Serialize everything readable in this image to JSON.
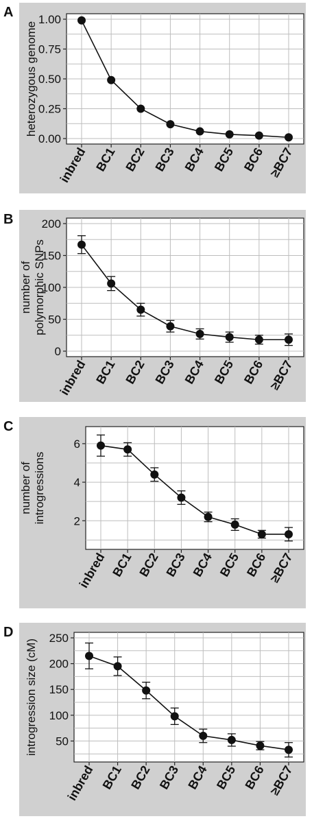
{
  "chart_data": [
    {
      "type": "line",
      "panel_label": "A",
      "ylabel": "heterozygous genome",
      "categories": [
        "inbred",
        "BC1",
        "BC2",
        "BC3",
        "BC4",
        "BC5",
        "BC6",
        "≥BC7"
      ],
      "values": [
        0.99,
        0.49,
        0.25,
        0.12,
        0.06,
        0.035,
        0.025,
        0.01
      ],
      "error": null,
      "ylim": [
        0,
        1
      ],
      "yticks": [
        0.0,
        0.25,
        0.5,
        0.75,
        1.0
      ],
      "ytick_labels": [
        "0.00",
        "0.25",
        "0.50",
        "0.75",
        "1.00"
      ],
      "grid": true,
      "legend": "none"
    },
    {
      "type": "line",
      "panel_label": "B",
      "ylabel": [
        "number of",
        "polymorphic SNPs"
      ],
      "categories": [
        "inbred",
        "BC1",
        "BC2",
        "BC3",
        "BC4",
        "BC5",
        "BC6",
        "≥BC7"
      ],
      "values": [
        167,
        106,
        65,
        39,
        27,
        22,
        18,
        18
      ],
      "error": [
        14,
        11,
        10,
        9,
        8,
        8,
        7,
        9
      ],
      "ylim": [
        0,
        200
      ],
      "yticks": [
        0,
        50,
        100,
        150,
        200
      ],
      "ytick_labels": [
        "0",
        "50",
        "100",
        "150",
        "200"
      ],
      "grid": true,
      "legend": "none"
    },
    {
      "type": "line",
      "panel_label": "C",
      "ylabel": [
        "number of",
        "introgressions"
      ],
      "categories": [
        "inbred",
        "BC1",
        "BC2",
        "BC3",
        "BC4",
        "BC5",
        "BC6",
        "≥BC7"
      ],
      "values": [
        5.9,
        5.7,
        4.4,
        3.2,
        2.2,
        1.8,
        1.3,
        1.3
      ],
      "error": [
        0.55,
        0.35,
        0.35,
        0.35,
        0.25,
        0.3,
        0.2,
        0.35
      ],
      "ylim": [
        0.8,
        6.6
      ],
      "yticks": [
        2,
        4,
        6
      ],
      "ytick_labels": [
        "2",
        "4",
        "6"
      ],
      "grid": true,
      "legend": "none"
    },
    {
      "type": "line",
      "panel_label": "D",
      "ylabel": "introgression size (cM)",
      "categories": [
        "inbred",
        "BC1",
        "BC2",
        "BC3",
        "BC4",
        "BC5",
        "BC6",
        "≥BC7"
      ],
      "values": [
        215,
        195,
        148,
        98,
        60,
        52,
        41,
        33
      ],
      "error": [
        25,
        18,
        16,
        16,
        13,
        12,
        8,
        14
      ],
      "ylim": [
        20,
        250
      ],
      "yticks": [
        50,
        100,
        150,
        200,
        250
      ],
      "ytick_labels": [
        "50",
        "100",
        "150",
        "200",
        "250"
      ],
      "grid": true,
      "legend": "none"
    }
  ]
}
